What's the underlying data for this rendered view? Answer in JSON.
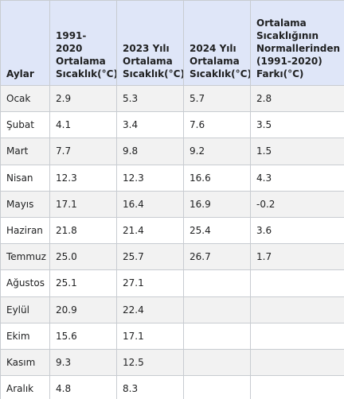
{
  "table": {
    "header": [
      "Aylar",
      "1991-2020 Ortalama Sıcaklık(°C)",
      "2023 Yılı Ortalama Sıcaklık(°C)",
      "2024 Yılı Ortalama Sıcaklık(°C)",
      "Ortalama Sıcaklığının Normallerinden (1991-2020) Farkı(°C)"
    ],
    "rows": [
      [
        "Ocak",
        "2.9",
        "5.3",
        "5.7",
        "2.8"
      ],
      [
        "Şubat",
        "4.1",
        "3.4",
        "7.6",
        "3.5"
      ],
      [
        "Mart",
        "7.7",
        "9.8",
        "9.2",
        "1.5"
      ],
      [
        "Nisan",
        "12.3",
        "12.3",
        "16.6",
        "4.3"
      ],
      [
        "Mayıs",
        "17.1",
        "16.4",
        "16.9",
        "-0.2"
      ],
      [
        "Haziran",
        "21.8",
        "21.4",
        "25.4",
        "3.6"
      ],
      [
        "Temmuz",
        "25.0",
        "25.7",
        "26.7",
        "1.7"
      ],
      [
        "Ağustos",
        "25.1",
        "27.1",
        null,
        null
      ],
      [
        "Eylül",
        "20.9",
        "22.4",
        null,
        null
      ],
      [
        "Ekim",
        "15.6",
        "17.1",
        null,
        null
      ],
      [
        "Kasım",
        "9.3",
        "12.5",
        null,
        null
      ],
      [
        "Aralık",
        "4.8",
        "8.3",
        null,
        null
      ]
    ]
  }
}
